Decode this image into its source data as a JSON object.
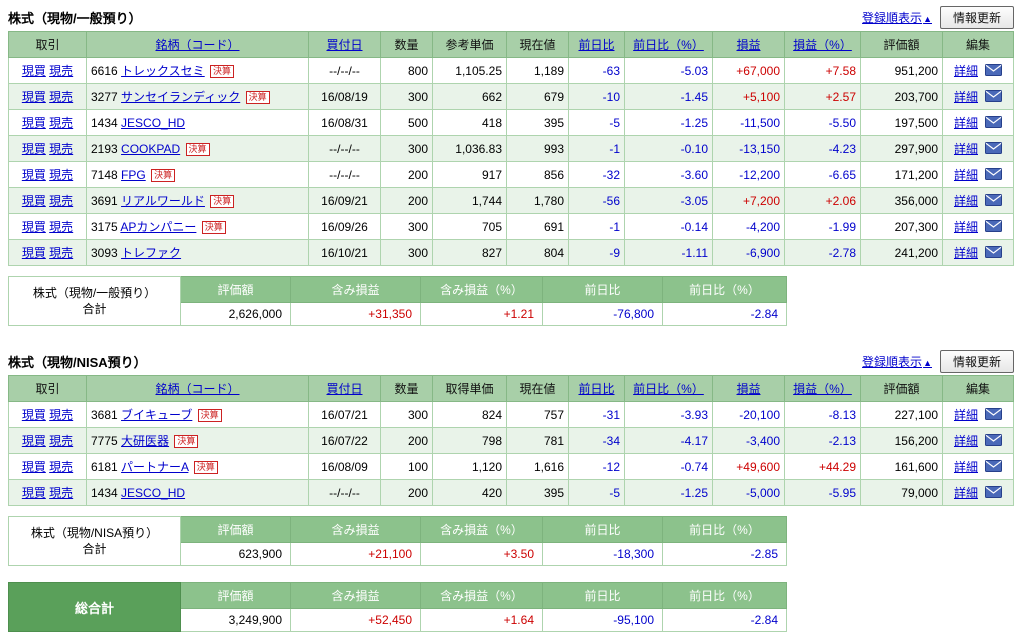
{
  "labels": {
    "buy": "現買",
    "sell": "現売",
    "detail": "詳細",
    "kessan": "決算",
    "sort": "登録順表示",
    "sort_arrow": "▲",
    "refresh": "情報更新"
  },
  "icons": {
    "mail": "envelope"
  },
  "sections": [
    {
      "title": "株式（現物/一般預り）",
      "columns": [
        {
          "label": "取引",
          "link": false
        },
        {
          "label": "銘柄（コード）",
          "link": true
        },
        {
          "label": "買付日",
          "link": true
        },
        {
          "label": "数量",
          "link": false
        },
        {
          "label": "参考単価",
          "link": false
        },
        {
          "label": "現在値",
          "link": false
        },
        {
          "label": "前日比",
          "link": true
        },
        {
          "label": "前日比（%）",
          "link": true
        },
        {
          "label": "損益",
          "link": true
        },
        {
          "label": "損益（%）",
          "link": true
        },
        {
          "label": "評価額",
          "link": false
        },
        {
          "label": "編集",
          "link": false
        }
      ],
      "rows": [
        {
          "code": "6616",
          "name": "トレックスセミ",
          "kessan": true,
          "date": "--/--/--",
          "qty": "800",
          "ref_price": "1,105.25",
          "cur_price": "1,189",
          "day_change": "-63",
          "day_change_pct": "-5.03",
          "profit": "+67,000",
          "profit_pct": "+7.58",
          "value": "951,200"
        },
        {
          "code": "3277",
          "name": "サンセイランディック",
          "kessan": true,
          "date": "16/08/19",
          "qty": "300",
          "ref_price": "662",
          "cur_price": "679",
          "day_change": "-10",
          "day_change_pct": "-1.45",
          "profit": "+5,100",
          "profit_pct": "+2.57",
          "value": "203,700"
        },
        {
          "code": "1434",
          "name": "JESCO_HD",
          "kessan": false,
          "date": "16/08/31",
          "qty": "500",
          "ref_price": "418",
          "cur_price": "395",
          "day_change": "-5",
          "day_change_pct": "-1.25",
          "profit": "-11,500",
          "profit_pct": "-5.50",
          "value": "197,500"
        },
        {
          "code": "2193",
          "name": "COOKPAD",
          "kessan": true,
          "date": "--/--/--",
          "qty": "300",
          "ref_price": "1,036.83",
          "cur_price": "993",
          "day_change": "-1",
          "day_change_pct": "-0.10",
          "profit": "-13,150",
          "profit_pct": "-4.23",
          "value": "297,900"
        },
        {
          "code": "7148",
          "name": "FPG",
          "kessan": true,
          "date": "--/--/--",
          "qty": "200",
          "ref_price": "917",
          "cur_price": "856",
          "day_change": "-32",
          "day_change_pct": "-3.60",
          "profit": "-12,200",
          "profit_pct": "-6.65",
          "value": "171,200"
        },
        {
          "code": "3691",
          "name": "リアルワールド",
          "kessan": true,
          "date": "16/09/21",
          "qty": "200",
          "ref_price": "1,744",
          "cur_price": "1,780",
          "day_change": "-56",
          "day_change_pct": "-3.05",
          "profit": "+7,200",
          "profit_pct": "+2.06",
          "value": "356,000"
        },
        {
          "code": "3175",
          "name": "APカンパニー",
          "kessan": true,
          "date": "16/09/26",
          "qty": "300",
          "ref_price": "705",
          "cur_price": "691",
          "day_change": "-1",
          "day_change_pct": "-0.14",
          "profit": "-4,200",
          "profit_pct": "-1.99",
          "value": "207,300"
        },
        {
          "code": "3093",
          "name": "トレファク",
          "kessan": false,
          "date": "16/10/21",
          "qty": "300",
          "ref_price": "827",
          "cur_price": "804",
          "day_change": "-9",
          "day_change_pct": "-1.11",
          "profit": "-6,900",
          "profit_pct": "-2.78",
          "value": "241,200"
        }
      ]
    },
    {
      "title": "株式（現物/NISA預り）",
      "columns": [
        {
          "label": "取引",
          "link": false
        },
        {
          "label": "銘柄（コード）",
          "link": true
        },
        {
          "label": "買付日",
          "link": true
        },
        {
          "label": "数量",
          "link": false
        },
        {
          "label": "取得単価",
          "link": false
        },
        {
          "label": "現在値",
          "link": false
        },
        {
          "label": "前日比",
          "link": true
        },
        {
          "label": "前日比（%）",
          "link": true
        },
        {
          "label": "損益",
          "link": true
        },
        {
          "label": "損益（%）",
          "link": true
        },
        {
          "label": "評価額",
          "link": false
        },
        {
          "label": "編集",
          "link": false
        }
      ],
      "rows": [
        {
          "code": "3681",
          "name": "ブイキューブ",
          "kessan": true,
          "date": "16/07/21",
          "qty": "300",
          "ref_price": "824",
          "cur_price": "757",
          "day_change": "-31",
          "day_change_pct": "-3.93",
          "profit": "-20,100",
          "profit_pct": "-8.13",
          "value": "227,100"
        },
        {
          "code": "7775",
          "name": "大研医器",
          "kessan": true,
          "date": "16/07/22",
          "qty": "200",
          "ref_price": "798",
          "cur_price": "781",
          "day_change": "-34",
          "day_change_pct": "-4.17",
          "profit": "-3,400",
          "profit_pct": "-2.13",
          "value": "156,200"
        },
        {
          "code": "6181",
          "name": "パートナーA",
          "kessan": true,
          "date": "16/08/09",
          "qty": "100",
          "ref_price": "1,120",
          "cur_price": "1,616",
          "day_change": "-12",
          "day_change_pct": "-0.74",
          "profit": "+49,600",
          "profit_pct": "+44.29",
          "value": "161,600"
        },
        {
          "code": "1434",
          "name": "JESCO_HD",
          "kessan": false,
          "date": "--/--/--",
          "qty": "200",
          "ref_price": "420",
          "cur_price": "395",
          "day_change": "-5",
          "day_change_pct": "-1.25",
          "profit": "-5,000",
          "profit_pct": "-5.95",
          "value": "79,000"
        }
      ]
    }
  ],
  "summaries": [
    {
      "label_line1": "株式（現物/一般預り）",
      "label_line2": "合計",
      "columns": [
        "評価額",
        "含み損益",
        "含み損益（%）",
        "前日比",
        "前日比（%）"
      ],
      "values": [
        "2,626,000",
        "+31,350",
        "+1.21",
        "-76,800",
        "-2.84"
      ]
    },
    {
      "label_line1": "株式（現物/NISA預り）",
      "label_line2": "合計",
      "columns": [
        "評価額",
        "含み損益",
        "含み損益（%）",
        "前日比",
        "前日比（%）"
      ],
      "values": [
        "623,900",
        "+21,100",
        "+3.50",
        "-18,300",
        "-2.85"
      ]
    }
  ],
  "total": {
    "label": "総合計",
    "columns": [
      "評価額",
      "含み損益",
      "含み損益（%）",
      "前日比",
      "前日比（%）"
    ],
    "values": [
      "3,249,900",
      "+52,450",
      "+1.64",
      "-95,100",
      "-2.84"
    ]
  }
}
